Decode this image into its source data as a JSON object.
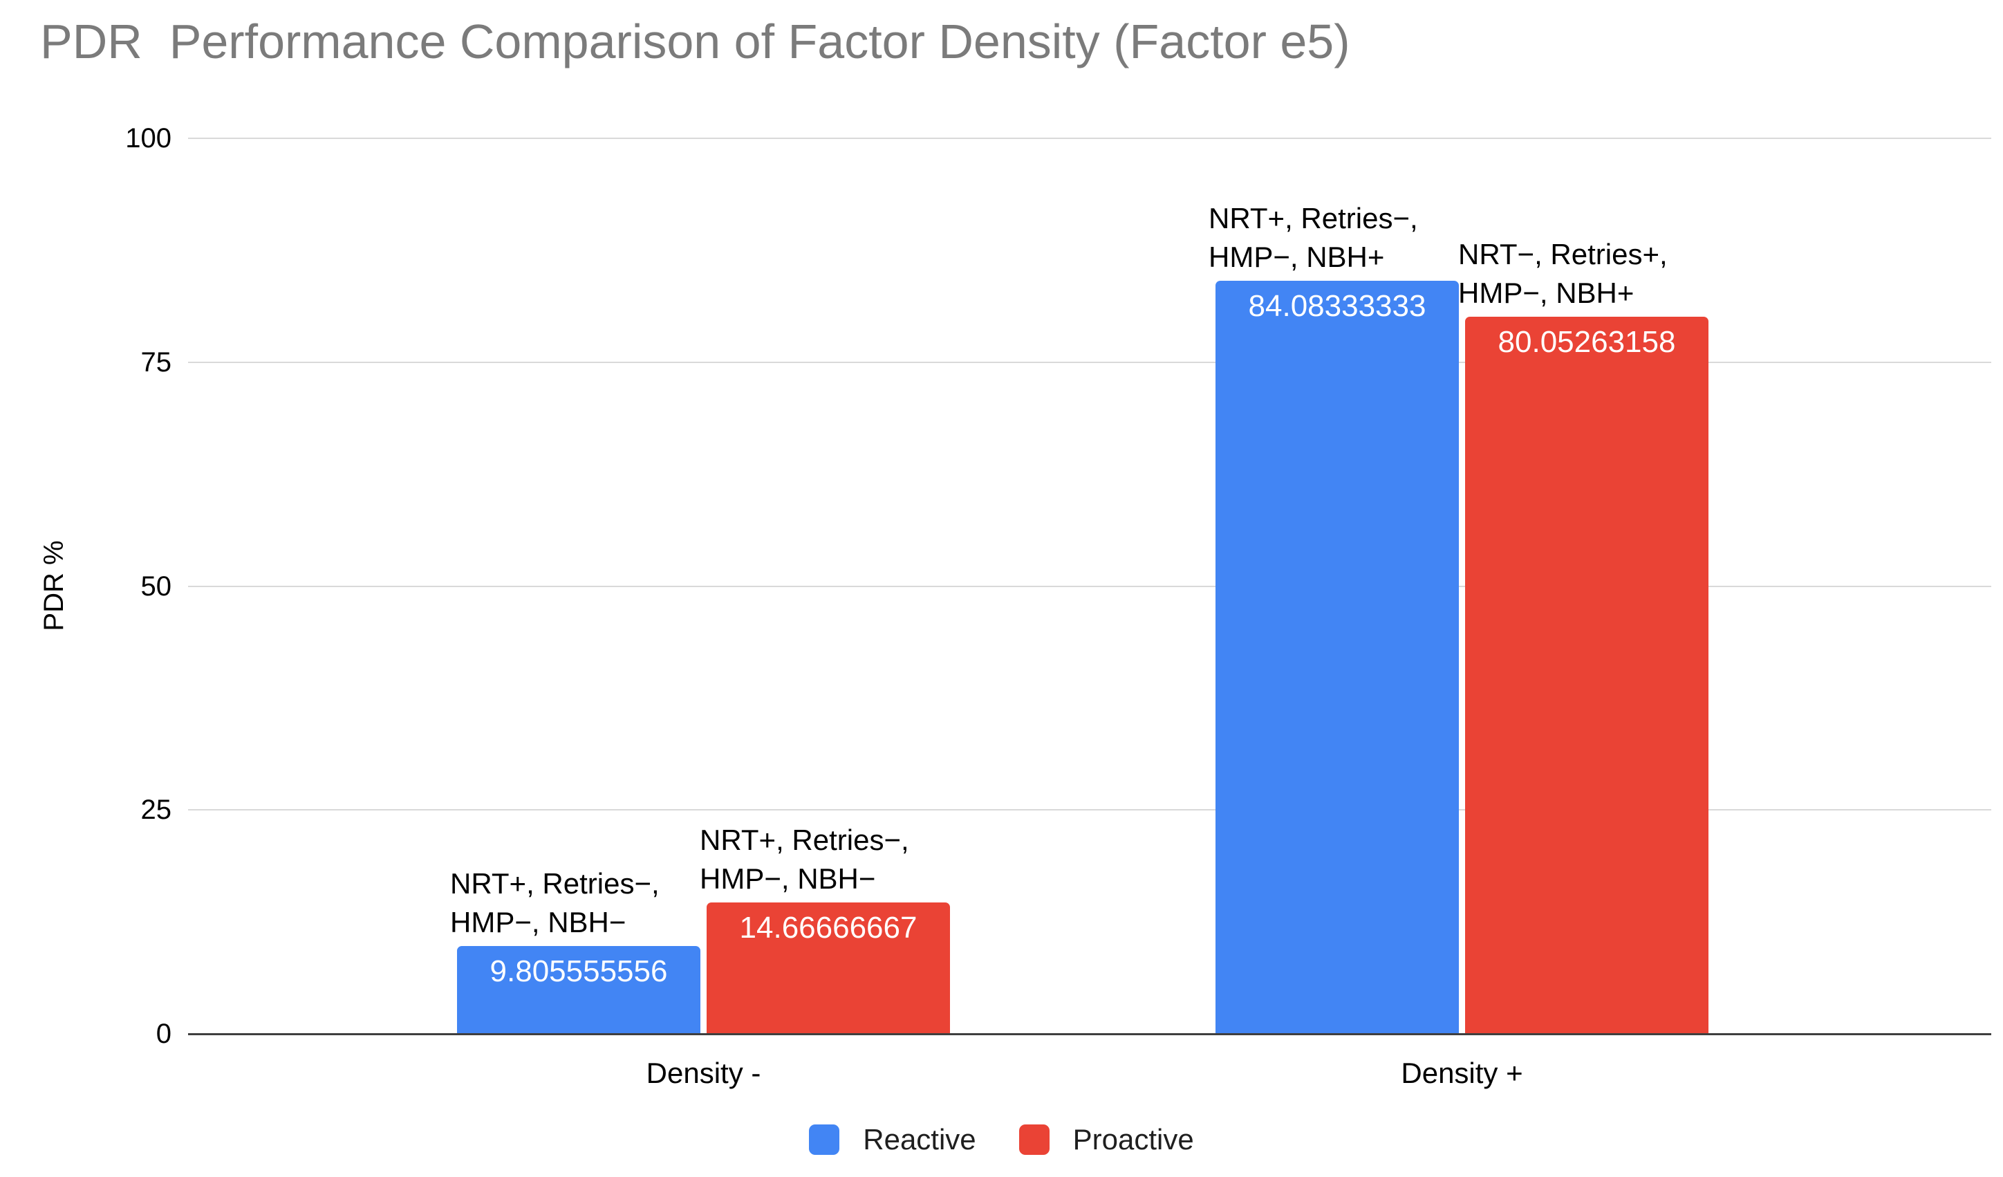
{
  "chart_data": {
    "type": "bar",
    "title": "PDR  Performance Comparison of Factor Density (Factor e5)",
    "xlabel": "",
    "ylabel": "PDR %",
    "ylim": [
      0,
      100
    ],
    "yticks": [
      0,
      25,
      50,
      75,
      100
    ],
    "grid": true,
    "categories": [
      "Density -",
      "Density +"
    ],
    "series": [
      {
        "name": "Reactive",
        "color": "#4285F4",
        "values": [
          9.805555556,
          84.08333333
        ],
        "value_labels": [
          "9.805555556",
          "84.08333333"
        ],
        "annotations": [
          [
            "NRT+, Retries−,",
            "HMP−, NBH−"
          ],
          [
            "NRT+, Retries−,",
            "HMP−, NBH+"
          ]
        ]
      },
      {
        "name": "Proactive",
        "color": "#EA4335",
        "values": [
          14.66666667,
          80.05263158
        ],
        "value_labels": [
          "14.66666667",
          "80.05263158"
        ],
        "annotations": [
          [
            "NRT+, Retries−,",
            "HMP−, NBH−"
          ],
          [
            "NRT−, Retries+,",
            "HMP−, NBH+"
          ]
        ]
      }
    ],
    "legend": {
      "position": "bottom",
      "entries": [
        "Reactive",
        "Proactive"
      ]
    }
  }
}
